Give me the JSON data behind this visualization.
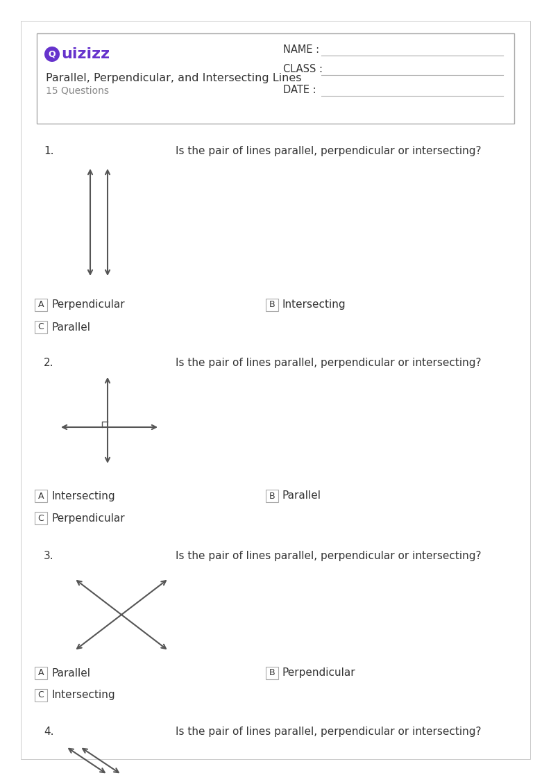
{
  "page_width": 7.94,
  "page_height": 11.23,
  "bg_color": "#ffffff",
  "text_color": "#333333",
  "quizizz_purple": "#6633cc",
  "line_color": "#555555",
  "box_color": "#aaaaaa",
  "header": {
    "title": "Parallel, Perpendicular, and Intersecting Lines",
    "subtitle": "15 Questions",
    "name_label": "NAME :",
    "class_label": "CLASS :",
    "date_label": "DATE :"
  },
  "question_text": "Is the pair of lines parallel, perpendicular or intersecting?",
  "q1": {
    "num": "1.",
    "options_row1": [
      [
        "A",
        "Perpendicular"
      ],
      [
        "B",
        "Intersecting"
      ]
    ],
    "options_row2": [
      [
        "C",
        "Parallel"
      ]
    ]
  },
  "q2": {
    "num": "2.",
    "options_row1": [
      [
        "A",
        "Intersecting"
      ],
      [
        "B",
        "Parallel"
      ]
    ],
    "options_row2": [
      [
        "C",
        "Perpendicular"
      ]
    ]
  },
  "q3": {
    "num": "3.",
    "options_row1": [
      [
        "A",
        "Parallel"
      ],
      [
        "B",
        "Perpendicular"
      ]
    ],
    "options_row2": [
      [
        "C",
        "Intersecting"
      ]
    ]
  },
  "q4": {
    "num": "4."
  }
}
